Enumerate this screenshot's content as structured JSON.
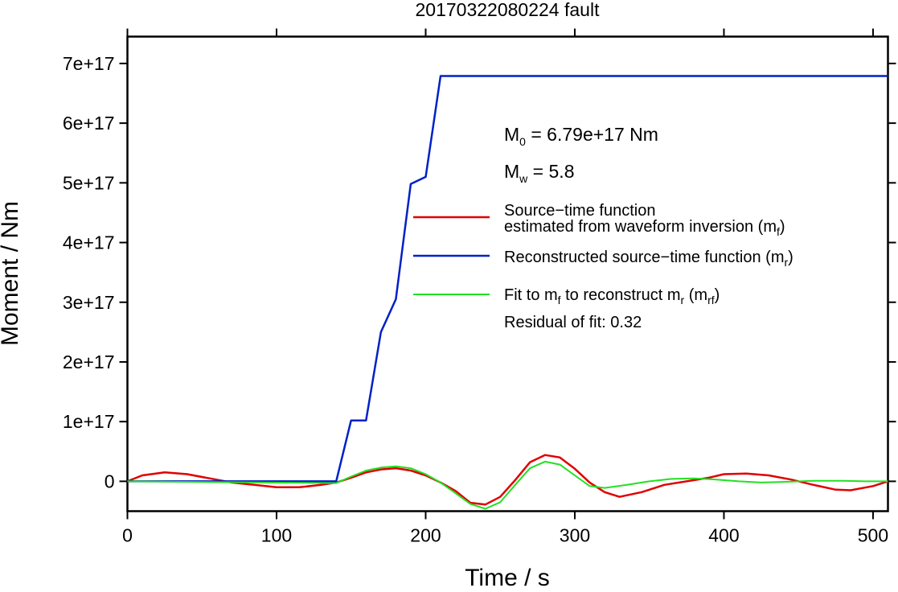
{
  "chart_data": {
    "type": "line",
    "title": "20170322080224 fault",
    "xlabel": "Time / s",
    "ylabel": "Moment / Nm",
    "xlim": [
      0,
      510
    ],
    "ylim": [
      -5e+16,
      7.45e+17
    ],
    "xticks": [
      0,
      100,
      200,
      300,
      400,
      500
    ],
    "yticks": [
      0,
      1e+17,
      2e+17,
      3e+17,
      4e+17,
      5e+17,
      6e+17,
      7e+17
    ],
    "xtick_labels": [
      "0",
      "100",
      "200",
      "300",
      "400",
      "500"
    ],
    "ytick_labels": [
      "0",
      "1e+17",
      "2e+17",
      "3e+17",
      "4e+17",
      "5e+17",
      "6e+17",
      "7e+17"
    ],
    "grid": false,
    "legend_position": "top-right",
    "annotations": {
      "m0_symbol": "M",
      "m0_sub": "0",
      "m0_text": " = 6.79e+17 Nm",
      "mw_symbol": "M",
      "mw_sub": "w",
      "mw_text": " = 5.8",
      "residual": "Residual of fit: 0.32"
    },
    "legend": {
      "red_line1": "Source−time function",
      "red_line2_a": "estimated from waveform inversion (m",
      "red_line2_sub": "f",
      "red_line2_b": ")",
      "blue_a": "Reconstructed source−time function (m",
      "blue_sub": "r",
      "blue_b": ")",
      "green_a": "Fit to m",
      "green_sub1": "f",
      "green_b": " to reconstruct m",
      "green_sub2": "r",
      "green_c": " (m",
      "green_sub3": "rf",
      "green_d": ")"
    },
    "series": [
      {
        "color": "#e00000",
        "points": [
          [
            0,
            0
          ],
          [
            10,
            1e+16
          ],
          [
            25,
            1.5e+16
          ],
          [
            40,
            1.2e+16
          ],
          [
            55,
            5000000000000000.0
          ],
          [
            70,
            -2000000000000000.0
          ],
          [
            85,
            -6000000000000000.0
          ],
          [
            100,
            -1e+16
          ],
          [
            115,
            -1e+16
          ],
          [
            130,
            -6000000000000000.0
          ],
          [
            140,
            -2000000000000000.0
          ],
          [
            150,
            6000000000000000.0
          ],
          [
            160,
            1.5e+16
          ],
          [
            170,
            2e+16
          ],
          [
            180,
            2.2e+16
          ],
          [
            190,
            1.8e+16
          ],
          [
            200,
            1e+16
          ],
          [
            210,
            -2000000000000000.0
          ],
          [
            220,
            -1.6e+16
          ],
          [
            230,
            -3.6e+16
          ],
          [
            240,
            -3.9e+16
          ],
          [
            250,
            -2.6e+16
          ],
          [
            260,
            2000000000000000.0
          ],
          [
            270,
            3.2e+16
          ],
          [
            280,
            4.4e+16
          ],
          [
            290,
            4e+16
          ],
          [
            300,
            2.1e+16
          ],
          [
            310,
            -2000000000000000.0
          ],
          [
            320,
            -1.8e+16
          ],
          [
            330,
            -2.6e+16
          ],
          [
            345,
            -1.8e+16
          ],
          [
            360,
            -6000000000000000.0
          ],
          [
            375,
            0
          ],
          [
            390,
            6000000000000000.0
          ],
          [
            400,
            1.2e+16
          ],
          [
            415,
            1.3e+16
          ],
          [
            430,
            1e+16
          ],
          [
            445,
            3000000000000000.0
          ],
          [
            460,
            -6000000000000000.0
          ],
          [
            475,
            -1.4e+16
          ],
          [
            485,
            -1.5e+16
          ],
          [
            500,
            -8000000000000000.0
          ],
          [
            510,
            0
          ]
        ]
      },
      {
        "color": "#0020c8",
        "points": [
          [
            0,
            0
          ],
          [
            140,
            0
          ],
          [
            150,
            1.02e+17
          ],
          [
            160,
            1.02e+17
          ],
          [
            170,
            2.5e+17
          ],
          [
            180,
            3.05e+17
          ],
          [
            190,
            4.98e+17
          ],
          [
            200,
            5.1e+17
          ],
          [
            210,
            6.79e+17
          ],
          [
            510,
            6.79e+17
          ]
        ]
      },
      {
        "color": "#22e022",
        "points": [
          [
            0,
            0
          ],
          [
            140,
            -3000000000000000.0
          ],
          [
            150,
            8000000000000000.0
          ],
          [
            160,
            1.8e+16
          ],
          [
            170,
            2.3e+16
          ],
          [
            180,
            2.5e+16
          ],
          [
            190,
            2.2e+16
          ],
          [
            200,
            1.2e+16
          ],
          [
            210,
            -2000000000000000.0
          ],
          [
            220,
            -2e+16
          ],
          [
            230,
            -3.8e+16
          ],
          [
            240,
            -4.6e+16
          ],
          [
            250,
            -3.5e+16
          ],
          [
            260,
            -6000000000000000.0
          ],
          [
            270,
            2.2e+16
          ],
          [
            280,
            3.3e+16
          ],
          [
            290,
            2.8e+16
          ],
          [
            300,
            1e+16
          ],
          [
            310,
            -8000000000000000.0
          ],
          [
            320,
            -1.1e+16
          ],
          [
            335,
            -6000000000000000.0
          ],
          [
            350,
            0
          ],
          [
            365,
            4000000000000000.0
          ],
          [
            380,
            5000000000000000.0
          ],
          [
            395,
            3000000000000000.0
          ],
          [
            410,
            0
          ],
          [
            425,
            -2000000000000000.0
          ],
          [
            440,
            -1000000000000000.0
          ],
          [
            460,
            1000000000000000.0
          ],
          [
            480,
            1000000000000000.0
          ],
          [
            495,
            0
          ],
          [
            510,
            0
          ]
        ]
      }
    ]
  }
}
